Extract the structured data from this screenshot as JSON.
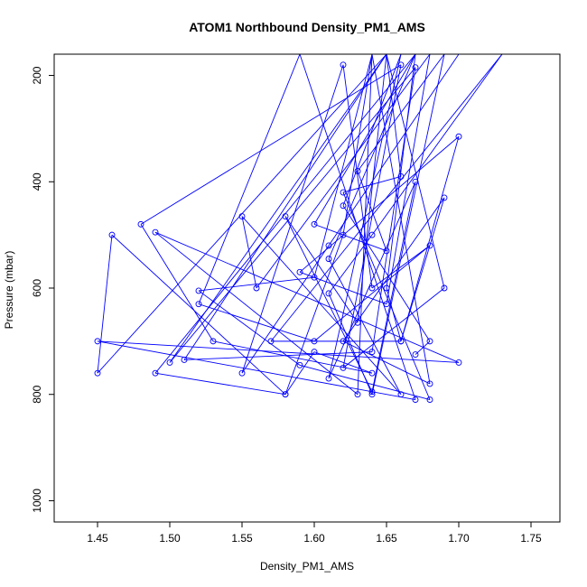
{
  "chart_data": {
    "type": "line",
    "title": "ATOM1 Northbound Density_PM1_AMS",
    "xlabel": "Density_PM1_AMS",
    "ylabel": "Pressure (mbar)",
    "xlim": [
      1.42,
      1.77
    ],
    "ylim": [
      1040,
      160
    ],
    "y_reversed": true,
    "x_ticks": [
      "1.45",
      "1.50",
      "1.55",
      "1.60",
      "1.65",
      "1.70",
      "1.75"
    ],
    "y_ticks": [
      "200",
      "400",
      "600",
      "800",
      "1000"
    ],
    "grid": false,
    "legend": "none",
    "colors": {
      "series": "#0000ff",
      "axis": "#000000",
      "background": "#ffffff"
    },
    "marker": "open-circle",
    "series": [
      {
        "points": [
          [
            1.7,
            160
          ],
          [
            1.61,
            520
          ],
          [
            1.55,
            760
          ],
          [
            1.62,
            180
          ],
          [
            1.64,
            600
          ],
          [
            1.68,
            520
          ],
          [
            1.6,
            700
          ],
          [
            1.52,
            630
          ],
          [
            1.59,
            160
          ],
          [
            1.67,
            810
          ],
          [
            1.45,
            700
          ],
          [
            1.7,
            740
          ],
          [
            1.49,
            495
          ],
          [
            1.63,
            800
          ],
          [
            1.64,
            160
          ],
          [
            1.62,
            500
          ],
          [
            1.58,
            800
          ],
          [
            1.46,
            500
          ],
          [
            1.45,
            760
          ],
          [
            1.65,
            160
          ],
          [
            1.5,
            740
          ],
          [
            1.67,
            185
          ],
          [
            1.64,
            720
          ],
          [
            1.51,
            735
          ],
          [
            1.65,
            160
          ],
          [
            1.69,
            600
          ],
          [
            1.62,
            750
          ],
          [
            1.66,
            180
          ],
          [
            1.48,
            480
          ],
          [
            1.53,
            700
          ],
          [
            1.64,
            760
          ],
          [
            1.6,
            720
          ],
          [
            1.58,
            800
          ],
          [
            1.49,
            760
          ],
          [
            1.67,
            160
          ],
          [
            1.61,
            545
          ],
          [
            1.66,
            800
          ],
          [
            1.55,
            465
          ],
          [
            1.56,
            600
          ],
          [
            1.68,
            160
          ],
          [
            1.65,
            630
          ],
          [
            1.59,
            570
          ],
          [
            1.7,
            315
          ],
          [
            1.66,
            700
          ],
          [
            1.57,
            700
          ],
          [
            1.73,
            160
          ],
          [
            1.64,
            500
          ],
          [
            1.61,
            610
          ],
          [
            1.64,
            800
          ],
          [
            1.69,
            160
          ],
          [
            1.63,
            380
          ],
          [
            1.65,
            530
          ],
          [
            1.6,
            480
          ],
          [
            1.67,
            160
          ],
          [
            1.65,
            600
          ],
          [
            1.66,
            700
          ],
          [
            1.69,
            430
          ],
          [
            1.62,
            700
          ],
          [
            1.68,
            780
          ],
          [
            1.64,
            160
          ],
          [
            1.6,
            580
          ],
          [
            1.52,
            605
          ],
          [
            1.59,
            745
          ],
          [
            1.68,
            810
          ],
          [
            1.62,
            420
          ],
          [
            1.66,
            390
          ],
          [
            1.65,
            160
          ],
          [
            1.63,
            665
          ],
          [
            1.58,
            465
          ],
          [
            1.64,
            795
          ],
          [
            1.67,
            400
          ],
          [
            1.61,
            770
          ],
          [
            1.66,
            160
          ],
          [
            1.62,
            445
          ],
          [
            1.68,
            700
          ],
          [
            1.67,
            725
          ]
        ]
      }
    ]
  }
}
